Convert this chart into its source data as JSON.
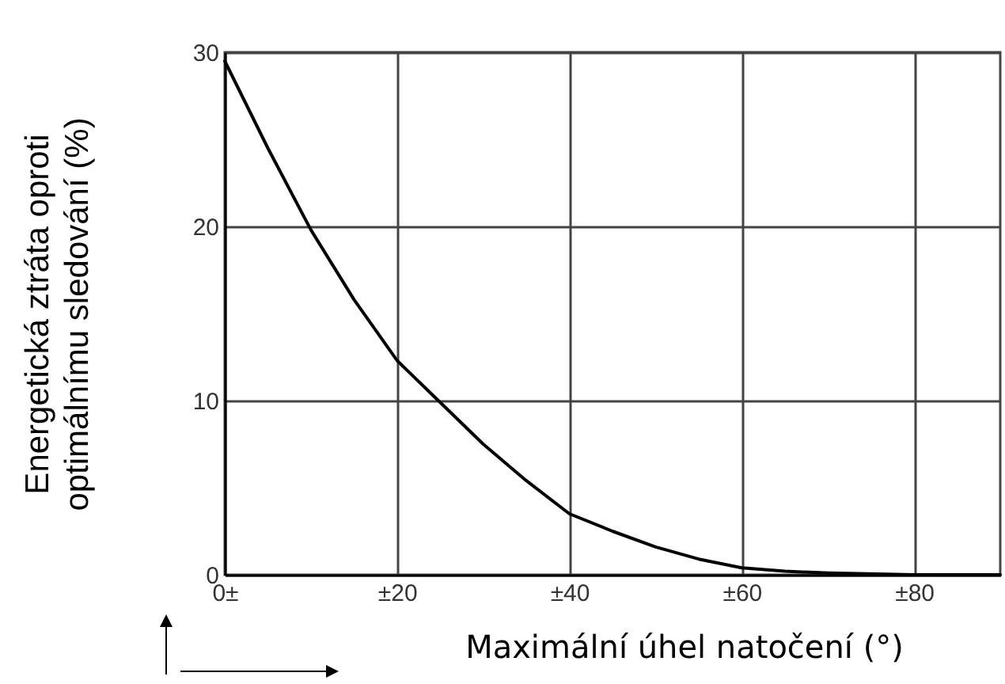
{
  "chart_data": {
    "type": "line",
    "xlabel": "Maximální úhel natočení (°)",
    "ylabel": "Energetická ztráta oproti optimálnímu sledování (%)",
    "x": [
      0,
      5,
      10,
      15,
      20,
      25,
      30,
      35,
      40,
      45,
      50,
      55,
      60,
      65,
      70,
      80,
      90
    ],
    "series": [
      {
        "color": "#000000",
        "values": [
          29.5,
          24.5,
          19.8,
          15.8,
          12.3,
          9.9,
          7.5,
          5.4,
          3.5,
          2.5,
          1.6,
          0.9,
          0.4,
          0.2,
          0.1,
          0,
          0
        ]
      }
    ],
    "xlim": [
      0,
      90
    ],
    "ylim": [
      0,
      30
    ],
    "xticks": [
      {
        "value": 0,
        "label": "0±"
      },
      {
        "value": 20,
        "label": "±20"
      },
      {
        "value": 40,
        "label": "±40"
      },
      {
        "value": 60,
        "label": "±60"
      },
      {
        "value": 80,
        "label": "±80"
      }
    ],
    "yticks": [
      0,
      10,
      20,
      30
    ],
    "grid": true,
    "marker": "none",
    "line_style": "solid"
  }
}
